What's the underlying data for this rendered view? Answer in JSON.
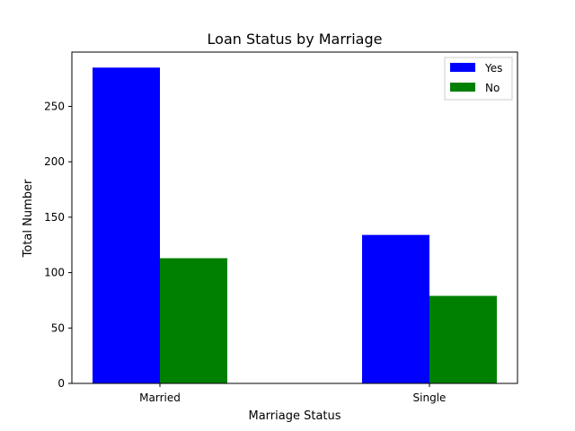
{
  "chart_data": {
    "type": "bar",
    "title": "Loan Status by Marriage",
    "xlabel": "Marriage Status",
    "ylabel": "Total Number",
    "categories": [
      "Married",
      "Single"
    ],
    "series": [
      {
        "name": "Yes",
        "values": [
          285,
          134
        ],
        "color": "#0000ff"
      },
      {
        "name": "No",
        "values": [
          113,
          79
        ],
        "color": "#008000"
      }
    ],
    "ylim": [
      0,
      299
    ],
    "yticks": [
      0,
      50,
      100,
      150,
      200,
      250
    ],
    "grid": false,
    "legend_position": "top-right"
  }
}
